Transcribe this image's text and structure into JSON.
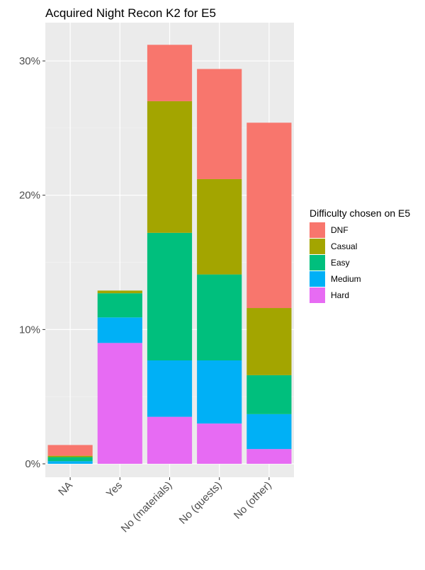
{
  "chart_data": {
    "type": "bar",
    "stacked": true,
    "title": "Acquired Night Recon K2 for E5",
    "xlabel": "",
    "ylabel": "",
    "categories": [
      "NA",
      "Yes",
      "No (materials)",
      "No (quests)",
      "No (other)"
    ],
    "ylim": [
      -0.01,
      0.3285
    ],
    "y_tick_values": [
      0,
      0.1,
      0.2,
      0.3
    ],
    "y_tick_labels": [
      "0%",
      "10%",
      "20%",
      "30%"
    ],
    "legend_title": "Difficulty chosen on E5",
    "legend_position": "right",
    "grid": true,
    "series": [
      {
        "name": "Hard",
        "color": "#E76BF3",
        "values": [
          0.0,
          0.09,
          0.035,
          0.03,
          0.011
        ]
      },
      {
        "name": "Medium",
        "color": "#00B0F6",
        "values": [
          0.002,
          0.019,
          0.042,
          0.047,
          0.026
        ]
      },
      {
        "name": "Easy",
        "color": "#00BF7D",
        "values": [
          0.003,
          0.018,
          0.095,
          0.064,
          0.029
        ]
      },
      {
        "name": "Casual",
        "color": "#A3A500",
        "values": [
          0.001,
          0.002,
          0.098,
          0.071,
          0.05
        ]
      },
      {
        "name": "DNF",
        "color": "#F8766D",
        "values": [
          0.008,
          0.0,
          0.042,
          0.082,
          0.138
        ]
      }
    ],
    "legend_order": [
      "DNF",
      "Casual",
      "Easy",
      "Medium",
      "Hard"
    ]
  }
}
